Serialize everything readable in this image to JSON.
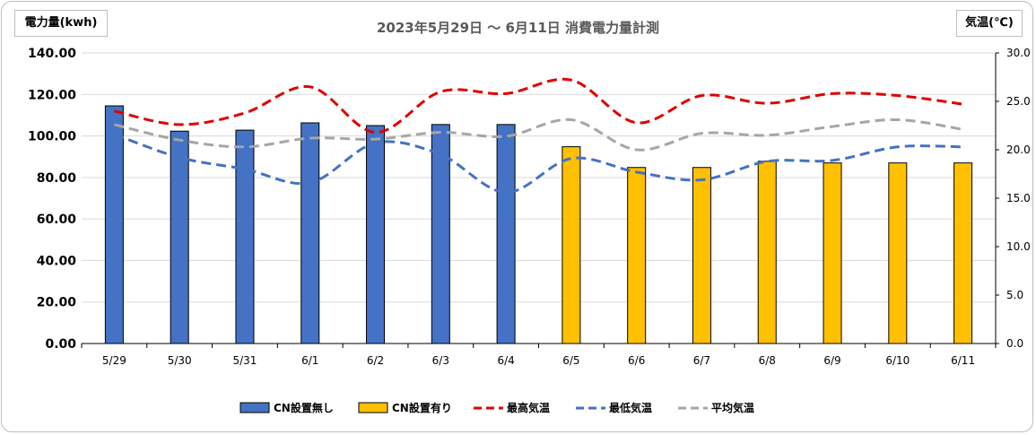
{
  "chart_data": {
    "type": "bar",
    "title": "2023年5月29日 ～ 6月11日 消費電力量計測",
    "ylabel_left": "電力量(kwh)",
    "ylabel_right": "気温(℃)",
    "categories": [
      "5/29",
      "5/30",
      "5/31",
      "6/1",
      "6/2",
      "6/3",
      "6/4",
      "6/5",
      "6/6",
      "6/7",
      "6/8",
      "6/9",
      "6/10",
      "6/11"
    ],
    "ylim_left": [
      0,
      140
    ],
    "ylim_right": [
      0,
      30
    ],
    "yticks_left": [
      "0.00",
      "20.00",
      "40.00",
      "60.00",
      "80.00",
      "100.00",
      "120.00",
      "140.00"
    ],
    "yticks_right": [
      "0.0",
      "5.0",
      "10.0",
      "15.0",
      "20.0",
      "25.0",
      "30.0"
    ],
    "grid": true,
    "legend_position": "bottom",
    "series": [
      {
        "name": "CN設置無し",
        "kind": "bar",
        "axis": "left",
        "color": "#4472C4",
        "values": [
          114.5,
          102.3,
          102.8,
          106.3,
          105.0,
          105.5,
          105.5,
          null,
          null,
          null,
          null,
          null,
          null,
          null
        ]
      },
      {
        "name": "CN設置有り",
        "kind": "bar",
        "axis": "left",
        "color": "#FFC000",
        "values": [
          null,
          null,
          null,
          null,
          null,
          null,
          null,
          94.8,
          84.8,
          84.8,
          87.8,
          87.0,
          87.0,
          87.0
        ]
      },
      {
        "name": "最高気温",
        "kind": "line",
        "axis": "right",
        "color": "#E00000",
        "values": [
          24.0,
          22.6,
          23.8,
          26.5,
          21.8,
          26.0,
          25.8,
          27.2,
          22.8,
          25.6,
          24.8,
          25.8,
          25.6,
          24.7
        ]
      },
      {
        "name": "最低気温",
        "kind": "line",
        "axis": "right",
        "color": "#4472C4",
        "values": [
          21.6,
          19.2,
          18.0,
          16.6,
          20.7,
          19.5,
          15.6,
          19.1,
          17.7,
          16.9,
          18.8,
          18.9,
          20.3,
          20.3
        ]
      },
      {
        "name": "平均気温",
        "kind": "line",
        "axis": "right",
        "color": "#A6A6A6",
        "values": [
          22.6,
          21.0,
          20.3,
          21.2,
          21.1,
          21.8,
          21.4,
          23.1,
          20.0,
          21.7,
          21.5,
          22.4,
          23.1,
          22.1
        ]
      }
    ]
  }
}
